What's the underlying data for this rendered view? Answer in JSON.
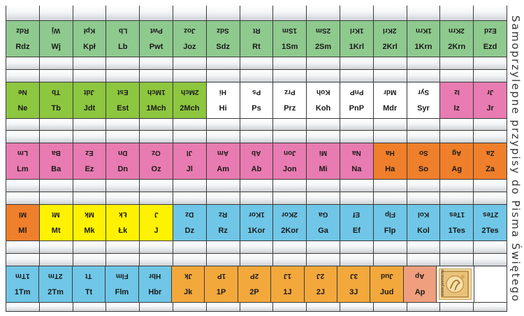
{
  "side_text": "Samoprzylepne przypisy do Pisma Świętego",
  "logo_url": "www.pisma.net.pl",
  "rows": [
    {
      "color": "green",
      "cells": [
        "Rdz",
        "Wj",
        "Kpł",
        "Lb",
        "Pwt",
        "Joz",
        "Sdz",
        "Rt",
        "1Sm",
        "2Sm",
        "1Krl",
        "2Krl",
        "1Krn",
        "2Krn",
        "Ezd"
      ]
    },
    {
      "color": "mixed",
      "cells": [
        "Ne",
        "Tb",
        "Jdt",
        "Est",
        "1Mch",
        "2Mch",
        "Hi",
        "Ps",
        "Prz",
        "Koh",
        "PnP",
        "Mdr",
        "Syr",
        "Iz",
        "Jr"
      ]
    },
    {
      "color": "mixed",
      "cells": [
        "Lm",
        "Ba",
        "Ez",
        "Dn",
        "Oz",
        "Jl",
        "Am",
        "Ab",
        "Jon",
        "Mi",
        "Na",
        "Ha",
        "So",
        "Ag",
        "Za"
      ]
    },
    {
      "color": "mixed",
      "cells": [
        "Ml",
        "Mt",
        "Mk",
        "Łk",
        "J",
        "Dz",
        "Rz",
        "1Kor",
        "2Kor",
        "Ga",
        "Ef",
        "Flp",
        "Kol",
        "1Tes",
        "2Tes"
      ]
    },
    {
      "color": "mixed",
      "cells": [
        "1Tm",
        "2Tm",
        "Tt",
        "Flm",
        "Hbr",
        "Jk",
        "1P",
        "2P",
        "1J",
        "2J",
        "3J",
        "Jud",
        "Ap",
        ""
      ]
    }
  ]
}
